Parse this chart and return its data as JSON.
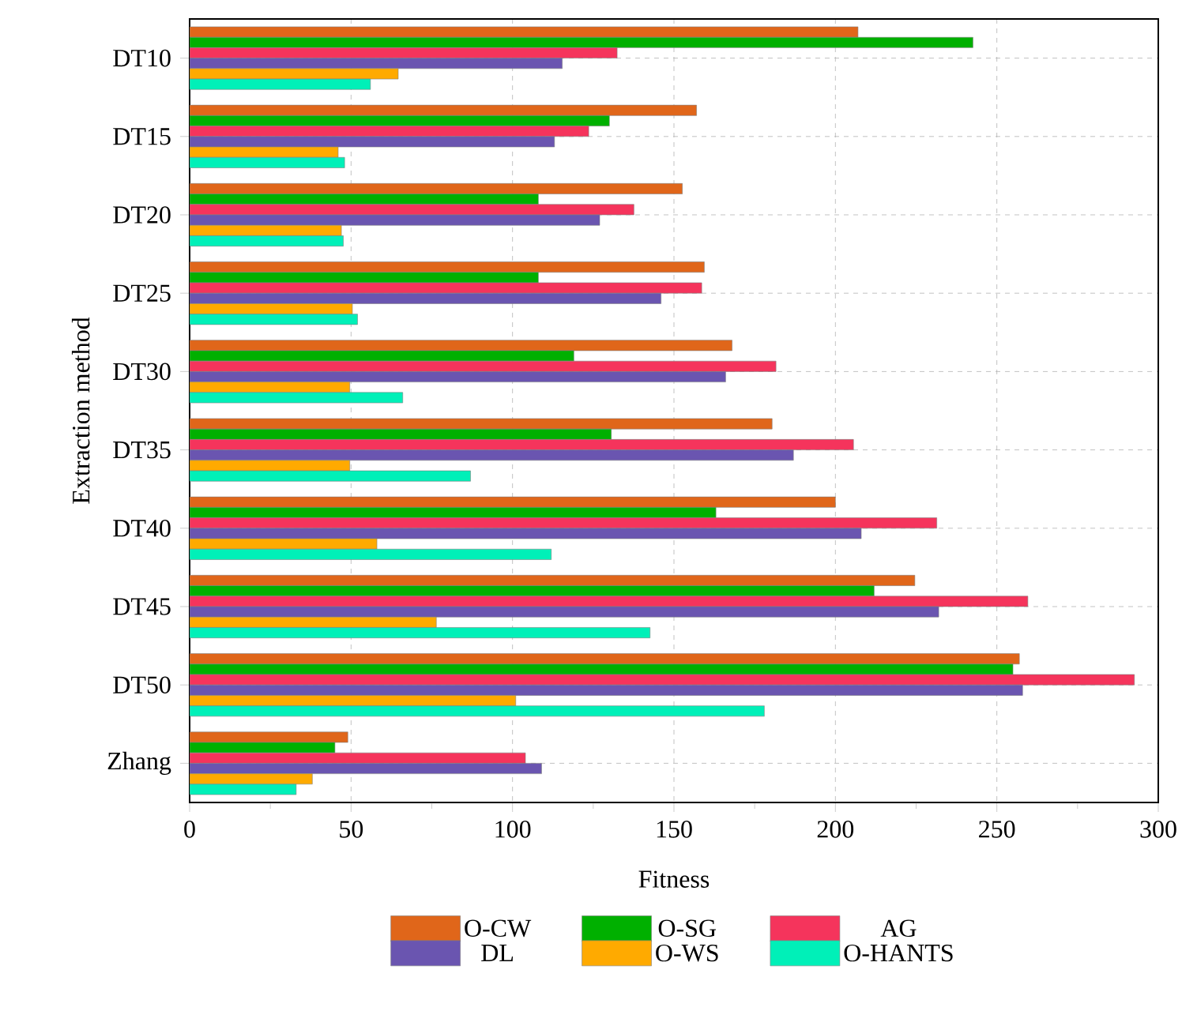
{
  "chart_data": {
    "type": "bar",
    "orientation": "horizontal",
    "xlabel": "Fitness",
    "ylabel": "Extraction method",
    "categories": [
      "DT10",
      "DT15",
      "DT20",
      "DT25",
      "DT30",
      "DT35",
      "DT40",
      "DT45",
      "DT50",
      "Zhang"
    ],
    "series": [
      {
        "name": "O-CW",
        "color": "#e0661a",
        "values": [
          207,
          157,
          152.6,
          159.4,
          168,
          180.4,
          200,
          224.6,
          257,
          49
        ]
      },
      {
        "name": "O-SG",
        "color": "#00b000",
        "values": [
          242.6,
          130,
          108,
          108,
          119,
          130.6,
          163,
          212,
          255,
          45
        ]
      },
      {
        "name": "AG",
        "color": "#f5345c",
        "values": [
          132.4,
          123.6,
          137.6,
          158.6,
          181.6,
          205.6,
          231.4,
          259.6,
          292.6,
          104
        ]
      },
      {
        "name": "DL",
        "color": "#6a55b0",
        "values": [
          115.4,
          113,
          127,
          146,
          166,
          187,
          208,
          232,
          258,
          109
        ]
      },
      {
        "name": "O-WS",
        "color": "#ffaa00",
        "values": [
          64.6,
          46,
          47,
          50.4,
          49.6,
          49.6,
          58,
          76.4,
          101,
          38
        ]
      },
      {
        "name": "O-HANTS",
        "color": "#00f0b8",
        "values": [
          56,
          48,
          47.6,
          52,
          66,
          87,
          112,
          142.6,
          178,
          33
        ]
      }
    ],
    "xlim": [
      0,
      300
    ],
    "xticks": [
      0,
      {
        "value": 25,
        "label": null
      },
      50,
      {
        "value": 75,
        "label": null
      },
      100,
      {
        "value": 125,
        "label": null
      },
      150,
      {
        "value": 175,
        "label": null
      },
      200,
      {
        "value": 225,
        "label": null
      },
      250,
      {
        "value": 275,
        "label": null
      },
      300
    ],
    "grid": true,
    "legend": "bottom"
  }
}
